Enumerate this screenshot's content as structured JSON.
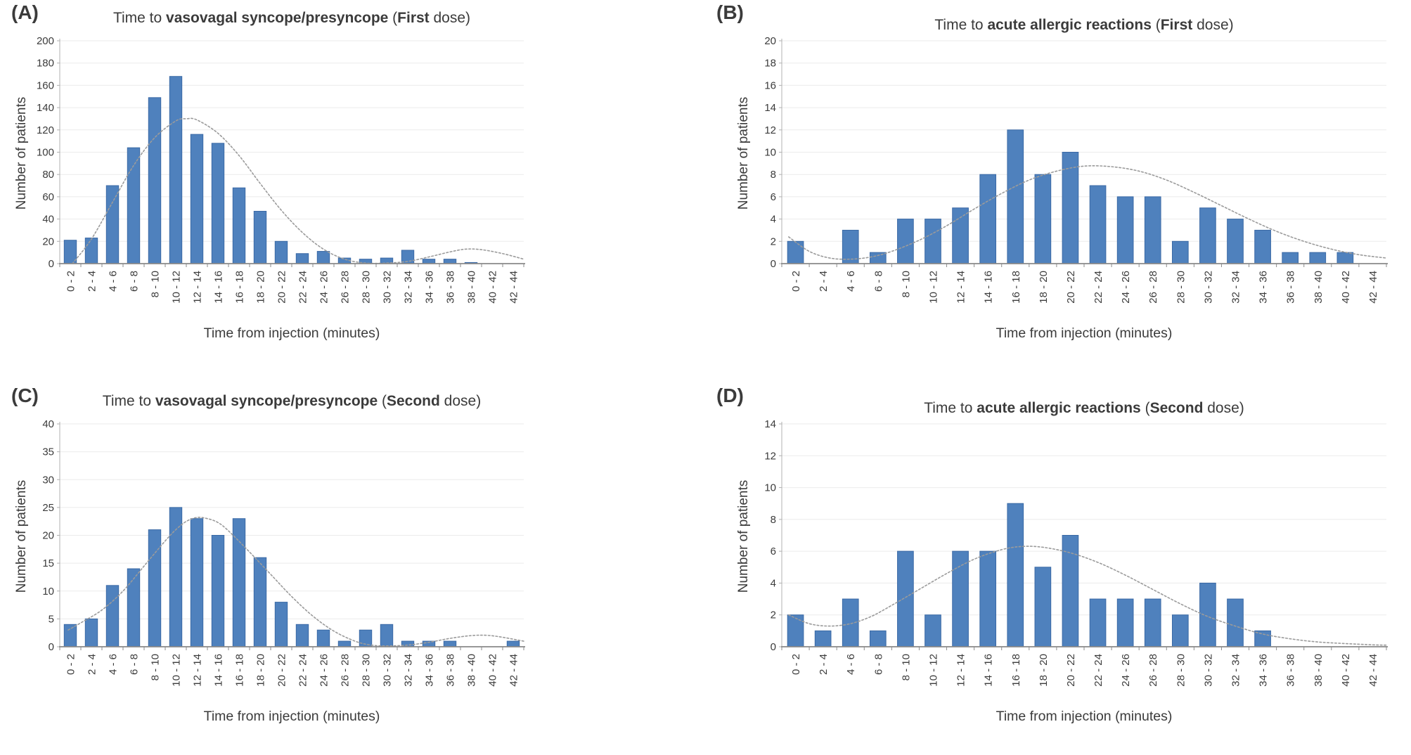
{
  "figure": {
    "background": "#ffffff",
    "bar_color": "#4f81bd",
    "bar_border": "#3a69a5",
    "curve_color": "#9b9b9b",
    "grid_color": "#ebebeb",
    "axis_color": "#b0b0b0",
    "baseline_color": "#8a8a8a",
    "text_color": "#3b3b3b"
  },
  "chart_data": [
    {
      "type": "bar",
      "panel_label": "(A)",
      "title": "Time to vasovagal syncope/presyncope (First dose)",
      "title_parts": [
        "Time to ",
        "vasovagal syncope/presyncope",
        " (",
        "First",
        " dose)"
      ],
      "xlabel": "Time from injection (minutes)",
      "ylabel": "Number of patients",
      "categories": [
        "0 - 2",
        "2 - 4",
        "4 - 6",
        "6 - 8",
        "8 - 10",
        "10 - 12",
        "12 - 14",
        "14 - 16",
        "16 - 18",
        "18 - 20",
        "20 - 22",
        "22 - 24",
        "24 - 26",
        "26 - 28",
        "28 - 30",
        "30 - 32",
        "32 - 34",
        "34 - 36",
        "36 - 38",
        "38 - 40",
        "40 - 42",
        "42 - 44"
      ],
      "values": [
        21,
        23,
        70,
        104,
        149,
        168,
        116,
        108,
        68,
        47,
        20,
        9,
        11,
        5,
        4,
        5,
        12,
        4,
        4,
        1,
        0,
        0
      ],
      "ylim": [
        0,
        200
      ],
      "y_ticks": [
        0,
        20,
        40,
        60,
        80,
        100,
        120,
        140,
        160,
        180,
        200
      ],
      "x_max": 44,
      "grid": true,
      "legend": false,
      "trend_style": "dotted",
      "trend_curve": [
        [
          1.2,
          0
        ],
        [
          3,
          22
        ],
        [
          5,
          55
        ],
        [
          7,
          88
        ],
        [
          9,
          113
        ],
        [
          11,
          128
        ],
        [
          12,
          130
        ],
        [
          13,
          129
        ],
        [
          15,
          117
        ],
        [
          17,
          97
        ],
        [
          19,
          72
        ],
        [
          21,
          48
        ],
        [
          23,
          28
        ],
        [
          25,
          13
        ],
        [
          27,
          4
        ],
        [
          29,
          0.5
        ],
        [
          31,
          0.5
        ],
        [
          33,
          2
        ],
        [
          35,
          6
        ],
        [
          37,
          10.5
        ],
        [
          38.5,
          13
        ],
        [
          40,
          12.5
        ],
        [
          42,
          9
        ],
        [
          44,
          4
        ]
      ]
    },
    {
      "type": "bar",
      "panel_label": "(B)",
      "title": "Time to acute allergic reactions (First dose)",
      "title_parts": [
        "Time to ",
        "acute allergic reactions",
        " (",
        "First",
        " dose)"
      ],
      "xlabel": "Time from injection (minutes)",
      "ylabel": "Number of patients",
      "categories": [
        "0 - 2",
        "2 - 4",
        "4 - 6",
        "6 - 8",
        "8 - 10",
        "10 - 12",
        "12 - 14",
        "14 - 16",
        "16 - 18",
        "18 - 20",
        "20 - 22",
        "22 - 24",
        "24 - 26",
        "26 - 28",
        "28 - 30",
        "30 - 32",
        "32 - 34",
        "34 - 36",
        "36 - 38",
        "38 - 40",
        "40 - 42",
        "42 - 44"
      ],
      "values": [
        2,
        0,
        3,
        1,
        4,
        4,
        5,
        8,
        12,
        8,
        10,
        7,
        6,
        6,
        2,
        5,
        4,
        3,
        1,
        1,
        1,
        0
      ],
      "ylim": [
        0,
        20
      ],
      "y_ticks": [
        0,
        2,
        4,
        6,
        8,
        10,
        12,
        14,
        16,
        18,
        20
      ],
      "x_max": 44,
      "grid": true,
      "legend": false,
      "trend_style": "dotted",
      "trend_curve": [
        [
          0.5,
          2.4
        ],
        [
          2,
          1.1
        ],
        [
          3.5,
          0.5
        ],
        [
          5,
          0.4
        ],
        [
          6.5,
          0.6
        ],
        [
          8,
          1.1
        ],
        [
          10,
          2.1
        ],
        [
          12,
          3.4
        ],
        [
          14,
          4.9
        ],
        [
          16,
          6.3
        ],
        [
          18,
          7.5
        ],
        [
          20,
          8.3
        ],
        [
          22,
          8.75
        ],
        [
          24,
          8.7
        ],
        [
          26,
          8.3
        ],
        [
          28,
          7.5
        ],
        [
          30,
          6.4
        ],
        [
          32,
          5.2
        ],
        [
          34,
          4.0
        ],
        [
          36,
          2.9
        ],
        [
          38,
          2.0
        ],
        [
          40,
          1.3
        ],
        [
          42,
          0.8
        ],
        [
          44,
          0.5
        ]
      ]
    },
    {
      "type": "bar",
      "panel_label": "(C)",
      "title": "Time to vasovagal syncope/presyncope (Second dose)",
      "title_parts": [
        "Time to ",
        "vasovagal syncope/presyncope",
        " (",
        "Second",
        " dose)"
      ],
      "xlabel": "Time from injection (minutes)",
      "ylabel": "Number of patients",
      "categories": [
        "0 - 2",
        "2 - 4",
        "4 - 6",
        "6 - 8",
        "8 - 10",
        "10 - 12",
        "12 - 14",
        "14 - 16",
        "16 - 18",
        "18 - 20",
        "20 - 22",
        "22 - 24",
        "24 - 26",
        "26 - 28",
        "28 - 30",
        "30 - 32",
        "32 - 34",
        "34 - 36",
        "36 - 38",
        "38 - 40",
        "40 - 42",
        "42 - 44"
      ],
      "values": [
        4,
        5,
        11,
        14,
        21,
        25,
        23,
        20,
        23,
        16,
        8,
        4,
        3,
        1,
        3,
        4,
        1,
        1,
        1,
        0,
        0,
        1
      ],
      "ylim": [
        0,
        40
      ],
      "y_ticks": [
        0,
        5,
        10,
        15,
        20,
        25,
        30,
        35,
        40
      ],
      "x_max": 44,
      "grid": true,
      "legend": false,
      "trend_style": "dotted",
      "trend_curve": [
        [
          0.8,
          3
        ],
        [
          2,
          4.3
        ],
        [
          4,
          6.6
        ],
        [
          6,
          10
        ],
        [
          8,
          14.5
        ],
        [
          10,
          19
        ],
        [
          11,
          21
        ],
        [
          12,
          22.5
        ],
        [
          13,
          23.2
        ],
        [
          14,
          23
        ],
        [
          15,
          22.3
        ],
        [
          16,
          20.8
        ],
        [
          18,
          17
        ],
        [
          20,
          13
        ],
        [
          22,
          9
        ],
        [
          24,
          5.5
        ],
        [
          26,
          2.8
        ],
        [
          28,
          1
        ],
        [
          29.5,
          0.3
        ],
        [
          31,
          0.15
        ],
        [
          33,
          0.3
        ],
        [
          35,
          0.8
        ],
        [
          37,
          1.5
        ],
        [
          39,
          2
        ],
        [
          40.5,
          2.05
        ],
        [
          42,
          1.7
        ],
        [
          44,
          1
        ]
      ]
    },
    {
      "type": "bar",
      "panel_label": "(D)",
      "title": "Time to acute allergic reactions (Second dose)",
      "title_parts": [
        "Time to ",
        "acute allergic reactions",
        " (",
        "Second",
        " dose)"
      ],
      "xlabel": "Time from injection (minutes)",
      "ylabel": "Number of patients",
      "categories": [
        "0 - 2",
        "2 - 4",
        "4 - 6",
        "6 - 8",
        "8 - 10",
        "10 - 12",
        "12 - 14",
        "14 - 16",
        "16 - 18",
        "18 - 20",
        "20 - 22",
        "22 - 24",
        "24 - 26",
        "26 - 28",
        "28 - 30",
        "30 - 32",
        "32 - 34",
        "34 - 36",
        "36 - 38",
        "38 - 40",
        "40 - 42",
        "42 - 44"
      ],
      "values": [
        2,
        1,
        3,
        1,
        6,
        2,
        6,
        6,
        9,
        5,
        7,
        3,
        3,
        3,
        2,
        4,
        3,
        1,
        0,
        0,
        0,
        0
      ],
      "ylim": [
        0,
        14
      ],
      "y_ticks": [
        0,
        2,
        4,
        6,
        8,
        10,
        12,
        14
      ],
      "x_max": 44,
      "grid": true,
      "legend": false,
      "trend_style": "dotted",
      "trend_curve": [
        [
          0.5,
          2.0
        ],
        [
          2,
          1.45
        ],
        [
          3.5,
          1.3
        ],
        [
          5,
          1.45
        ],
        [
          6.5,
          1.9
        ],
        [
          8,
          2.6
        ],
        [
          10,
          3.6
        ],
        [
          12,
          4.6
        ],
        [
          14,
          5.5
        ],
        [
          16,
          6.1
        ],
        [
          17.5,
          6.3
        ],
        [
          19,
          6.25
        ],
        [
          21,
          5.9
        ],
        [
          23,
          5.3
        ],
        [
          25,
          4.5
        ],
        [
          27,
          3.6
        ],
        [
          29,
          2.7
        ],
        [
          31,
          1.9
        ],
        [
          33,
          1.3
        ],
        [
          35,
          0.8
        ],
        [
          37,
          0.5
        ],
        [
          39,
          0.3
        ],
        [
          41,
          0.2
        ],
        [
          43,
          0.12
        ],
        [
          44,
          0.1
        ]
      ]
    }
  ]
}
